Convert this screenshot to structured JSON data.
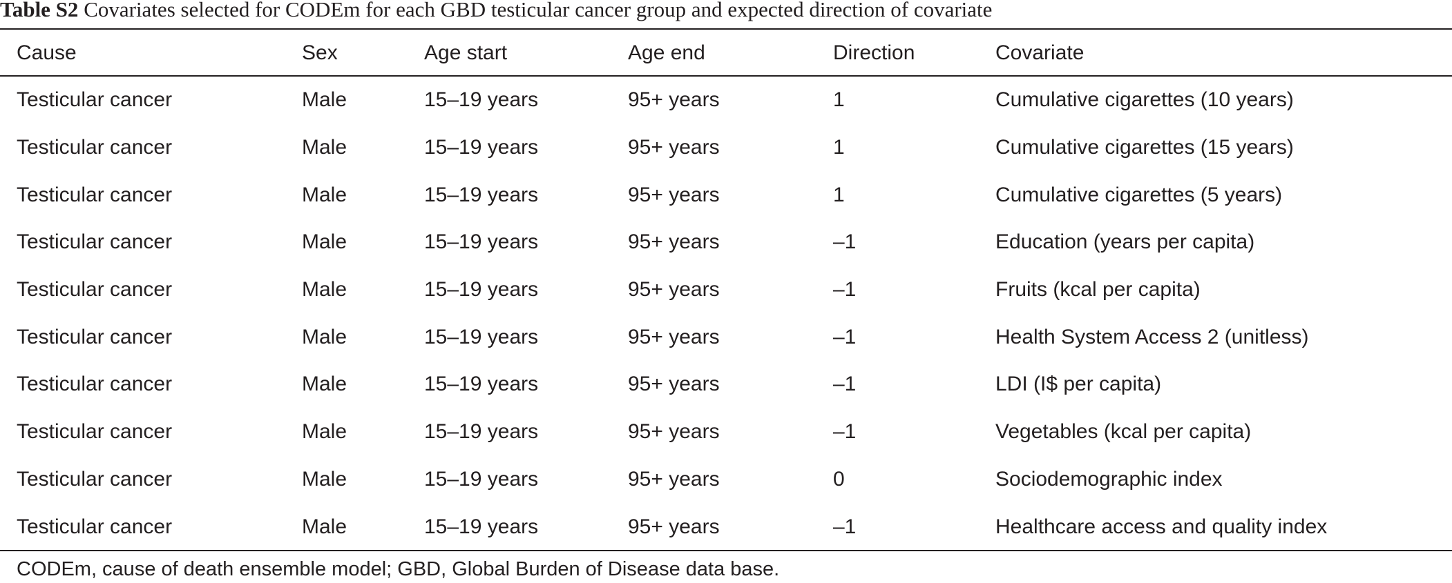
{
  "caption": {
    "label": "Table S2",
    "text": " Covariates selected for CODEm for each GBD testicular cancer group and expected direction of covariate"
  },
  "table": {
    "headers": [
      "Cause",
      "Sex",
      "Age start",
      "Age end",
      "Direction",
      "Covariate"
    ],
    "rows": [
      [
        "Testicular cancer",
        "Male",
        "15–19 years",
        "95+ years",
        "1",
        "Cumulative cigarettes (10 years)"
      ],
      [
        "Testicular cancer",
        "Male",
        "15–19 years",
        "95+ years",
        "1",
        "Cumulative cigarettes (15 years)"
      ],
      [
        "Testicular cancer",
        "Male",
        "15–19 years",
        "95+ years",
        "1",
        "Cumulative cigarettes (5 years)"
      ],
      [
        "Testicular cancer",
        "Male",
        "15–19 years",
        "95+ years",
        "–1",
        "Education (years per capita)"
      ],
      [
        "Testicular cancer",
        "Male",
        "15–19 years",
        "95+ years",
        "–1",
        "Fruits (kcal per capita)"
      ],
      [
        "Testicular cancer",
        "Male",
        "15–19 years",
        "95+ years",
        "–1",
        "Health System Access 2 (unitless)"
      ],
      [
        "Testicular cancer",
        "Male",
        "15–19 years",
        "95+ years",
        "–1",
        "LDI (I$ per capita)"
      ],
      [
        "Testicular cancer",
        "Male",
        "15–19 years",
        "95+ years",
        "–1",
        "Vegetables (kcal per capita)"
      ],
      [
        "Testicular cancer",
        "Male",
        "15–19 years",
        "95+ years",
        "0",
        "Sociodemographic index"
      ],
      [
        "Testicular cancer",
        "Male",
        "15–19 years",
        "95+ years",
        "–1",
        "Healthcare access and quality index"
      ]
    ]
  },
  "footnote": "CODEm, cause of death ensemble model; GBD, Global Burden of Disease data base."
}
